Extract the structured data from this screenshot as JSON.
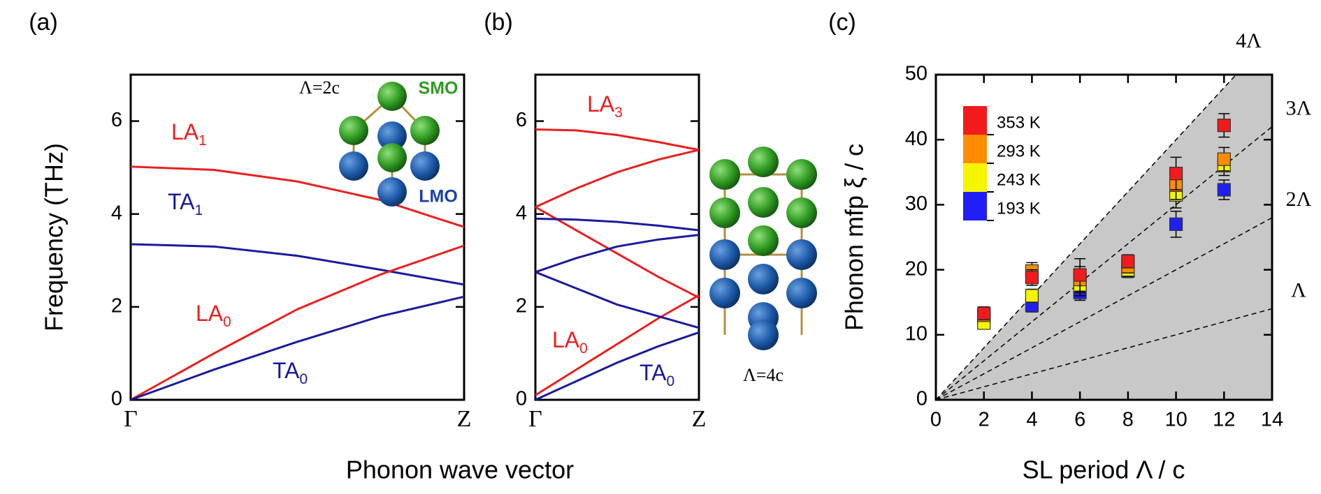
{
  "chart_data": [
    {
      "type": "line",
      "panel_label": "(a)",
      "y_label": "Frequency (THz)",
      "x_label": "Phonon wave vector",
      "x": [
        0,
        0.25,
        0.5,
        0.75,
        1
      ],
      "xlim": [
        0,
        1
      ],
      "xticks": [
        {
          "value": 0,
          "label": "Γ"
        },
        {
          "value": 1,
          "label": "Z"
        }
      ],
      "ylim": [
        0,
        7
      ],
      "yticks": [
        0,
        2,
        4,
        6
      ],
      "series": [
        {
          "color": "#e8201f",
          "values": [
            5.02,
            4.95,
            4.7,
            4.3,
            3.72
          ]
        },
        {
          "color": "#1a1a9c",
          "values": [
            3.35,
            3.3,
            3.1,
            2.8,
            2.48
          ]
        },
        {
          "color": "#e8201f",
          "values": [
            0,
            1.0,
            1.95,
            2.7,
            3.32
          ]
        },
        {
          "color": "#1a1a9c",
          "values": [
            0,
            0.65,
            1.25,
            1.8,
            2.22
          ]
        }
      ],
      "annotations": [
        {
          "text": "LA",
          "sub": "1",
          "color": "#e8201f"
        },
        {
          "text": "TA",
          "sub": "1",
          "color": "#1a1a9c"
        },
        {
          "text": "LA",
          "sub": "0",
          "color": "#e8201f"
        },
        {
          "text": "TA",
          "sub": "0",
          "color": "#1a1a9c"
        }
      ],
      "inset_labels": [
        "Λ=2c",
        "SMO",
        "LMO"
      ]
    },
    {
      "type": "line",
      "panel_label": "(b)",
      "x": [
        0,
        0.25,
        0.5,
        0.75,
        1
      ],
      "xlim": [
        0,
        1
      ],
      "xticks": [
        {
          "value": 0,
          "label": "Γ"
        },
        {
          "value": 1,
          "label": "Z"
        }
      ],
      "ylim": [
        0,
        7
      ],
      "yticks": [
        0,
        2,
        4,
        6
      ],
      "series": [
        {
          "color": "#e8201f",
          "values": [
            5.82,
            5.8,
            5.7,
            5.55,
            5.38
          ]
        },
        {
          "color": "#e8201f",
          "values": [
            4.15,
            4.55,
            4.9,
            5.17,
            5.38
          ]
        },
        {
          "color": "#e8201f",
          "values": [
            4.15,
            3.65,
            3.15,
            2.65,
            2.2
          ]
        },
        {
          "color": "#e8201f",
          "values": [
            0.1,
            0.65,
            1.2,
            1.75,
            2.25
          ]
        },
        {
          "color": "#1a1a9c",
          "values": [
            3.9,
            3.88,
            3.83,
            3.75,
            3.65
          ]
        },
        {
          "color": "#1a1a9c",
          "values": [
            2.75,
            3.05,
            3.3,
            3.45,
            3.55
          ]
        },
        {
          "color": "#1a1a9c",
          "values": [
            2.75,
            2.4,
            2.05,
            1.8,
            1.55
          ]
        },
        {
          "color": "#1a1a9c",
          "values": [
            0,
            0.4,
            0.8,
            1.15,
            1.45
          ]
        }
      ],
      "annotations": [
        {
          "text": "LA",
          "sub": "3",
          "color": "#e8201f"
        },
        {
          "text": "LA",
          "sub": "0",
          "color": "#e8201f"
        },
        {
          "text": "TA",
          "sub": "0",
          "color": "#1a1a9c"
        }
      ],
      "inset_labels": [
        "Λ=4c"
      ]
    },
    {
      "type": "scatter",
      "panel_label": "(c)",
      "y_label": "Phonon mfp ξ / c",
      "x_label": "SL period Λ / c",
      "x": [
        2,
        4,
        6,
        8,
        10,
        12
      ],
      "xlim": [
        0,
        14
      ],
      "xticks": [
        0,
        2,
        4,
        6,
        8,
        10,
        12,
        14
      ],
      "ylim": [
        0,
        50
      ],
      "yticks": [
        0,
        10,
        20,
        30,
        40,
        50
      ],
      "shade_color": "#c8c8c8",
      "guides": [
        {
          "slope": 1,
          "label": "Λ"
        },
        {
          "slope": 2,
          "label": "2Λ"
        },
        {
          "slope": 3,
          "label": "3Λ"
        },
        {
          "slope": 4,
          "label": "4Λ"
        }
      ],
      "series": [
        {
          "name": "193 K",
          "color": "#1f1ff5",
          "values": [
            12.7,
            14.5,
            16.5,
            19.8,
            27,
            32.3
          ],
          "errors": [
            0.8,
            1.0,
            1.2,
            1.0,
            2.0,
            1.5
          ]
        },
        {
          "name": "243 K",
          "color": "#f5f500",
          "values": [
            11.8,
            16,
            17.5,
            20,
            31.5,
            36
          ],
          "errors": [
            0.8,
            1.0,
            1.5,
            1.0,
            2.0,
            1.5
          ]
        },
        {
          "name": "293 K",
          "color": "#ff8c00",
          "values": [
            13.0,
            19.8,
            18.5,
            20.5,
            33,
            37
          ],
          "errors": [
            0.8,
            1.3,
            2.0,
            1.0,
            2.2,
            1.8
          ]
        },
        {
          "name": "353 K",
          "color": "#f21b1b",
          "values": [
            13.3,
            18.8,
            19.2,
            21.3,
            34.8,
            42.2
          ],
          "errors": [
            1.0,
            1.2,
            2.5,
            1.0,
            2.5,
            1.8
          ]
        }
      ]
    }
  ]
}
